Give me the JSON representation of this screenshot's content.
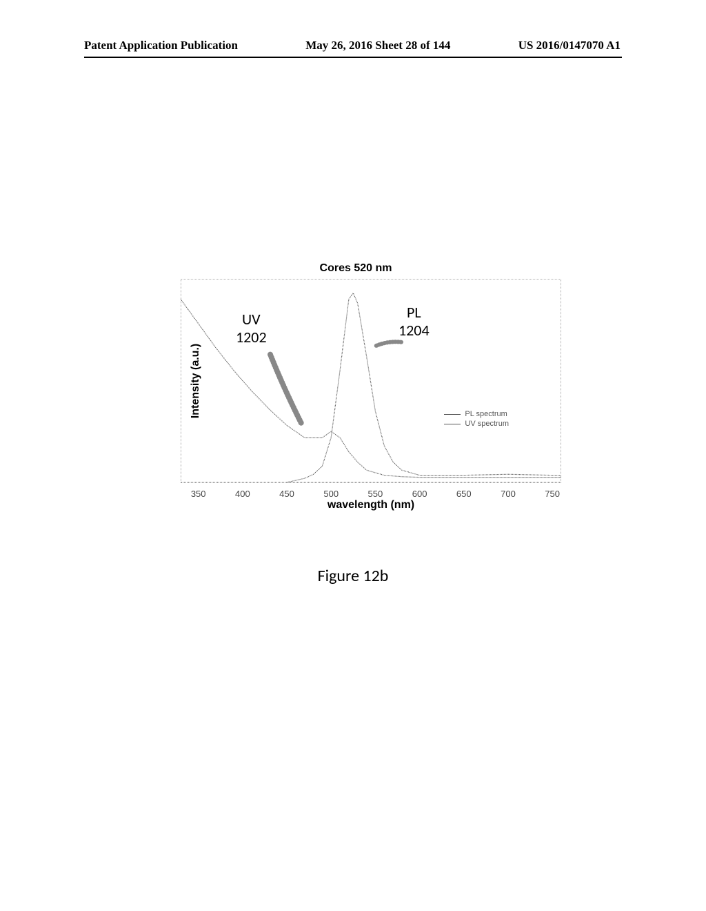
{
  "header": {
    "left": "Patent Application Publication",
    "center": "May 26, 2016  Sheet 28 of 144",
    "right": "US 2016/0147070 A1"
  },
  "chart": {
    "title": "Cores 520 nm",
    "type": "line",
    "x_label": "wavelength (nm)",
    "y_label": "Intensity (a.u.)",
    "xlim": [
      330,
      760
    ],
    "x_ticks": [
      350,
      400,
      450,
      500,
      550,
      600,
      650,
      700,
      750
    ],
    "ylim": [
      0,
      1.0
    ],
    "background_color": "#ffffff",
    "border_color": "#aaaaaa",
    "series": [
      {
        "name": "UV spectrum",
        "color": "#555555",
        "width": 1.2,
        "points_x": [
          330,
          350,
          370,
          390,
          410,
          430,
          450,
          470,
          490,
          500,
          510,
          520,
          530,
          540,
          560,
          580,
          600,
          650,
          700,
          750,
          760
        ],
        "points_y": [
          0.9,
          0.78,
          0.66,
          0.55,
          0.45,
          0.36,
          0.28,
          0.22,
          0.22,
          0.25,
          0.22,
          0.15,
          0.1,
          0.06,
          0.035,
          0.028,
          0.025,
          0.025,
          0.025,
          0.025,
          0.025
        ]
      },
      {
        "name": "PL spectrum",
        "color": "#555555",
        "width": 1.2,
        "points_x": [
          450,
          470,
          480,
          490,
          500,
          510,
          520,
          525,
          530,
          540,
          550,
          560,
          570,
          580,
          600,
          650,
          700,
          750,
          760
        ],
        "points_y": [
          0.0,
          0.02,
          0.04,
          0.08,
          0.22,
          0.55,
          0.9,
          0.93,
          0.88,
          0.62,
          0.35,
          0.18,
          0.1,
          0.06,
          0.035,
          0.035,
          0.04,
          0.035,
          0.035
        ]
      }
    ],
    "annotations": {
      "uv": {
        "line1": "UV",
        "line2": "1202"
      },
      "pl": {
        "line1": "PL",
        "line2": "1204"
      }
    },
    "legend": {
      "items": [
        {
          "label": "PL spectrum"
        },
        {
          "label": "UV spectrum"
        }
      ]
    }
  },
  "caption": "Figure 12b"
}
